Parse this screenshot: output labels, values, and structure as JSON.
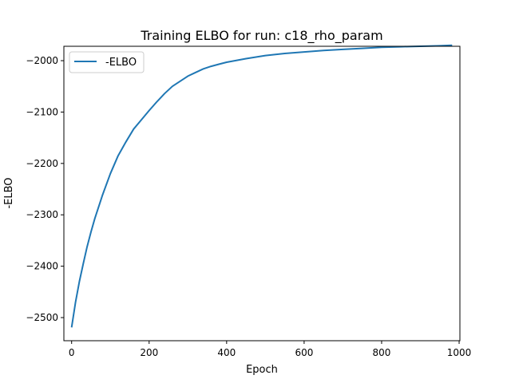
{
  "chart_data": {
    "type": "line",
    "title": "Training ELBO for run: c18_rho_param",
    "xlabel": "Epoch",
    "ylabel": "-ELBO",
    "xlim": [
      -20,
      1002
    ],
    "ylim": [
      -2545,
      -1972
    ],
    "xticks": [
      0,
      200,
      400,
      600,
      800,
      1000
    ],
    "xtick_labels": [
      "0",
      "200",
      "400",
      "600",
      "800",
      "1000"
    ],
    "yticks": [
      -2500,
      -2400,
      -2300,
      -2200,
      -2100,
      -2000
    ],
    "ytick_labels": [
      "−2500",
      "−2400",
      "−2300",
      "−2200",
      "−2100",
      "−2000"
    ],
    "grid": false,
    "legend": {
      "position": "top-left",
      "entries": [
        "-ELBO"
      ]
    },
    "series": [
      {
        "name": "-ELBO",
        "color": "#1f77b4",
        "x": [
          0,
          10,
          20,
          30,
          40,
          50,
          60,
          80,
          100,
          120,
          140,
          160,
          180,
          200,
          220,
          240,
          260,
          280,
          300,
          320,
          340,
          360,
          380,
          400,
          450,
          500,
          550,
          600,
          650,
          700,
          750,
          800,
          850,
          900,
          950,
          982
        ],
        "y": [
          -2519,
          -2470,
          -2430,
          -2395,
          -2362,
          -2333,
          -2307,
          -2261,
          -2220,
          -2185,
          -2158,
          -2133,
          -2115,
          -2097,
          -2080,
          -2064,
          -2050,
          -2040,
          -2030,
          -2023,
          -2016,
          -2011,
          -2007,
          -2003,
          -1996,
          -1990,
          -1986,
          -1983,
          -1980,
          -1978,
          -1976,
          -1974,
          -1973,
          -1972,
          -1971,
          -1970
        ]
      }
    ]
  }
}
